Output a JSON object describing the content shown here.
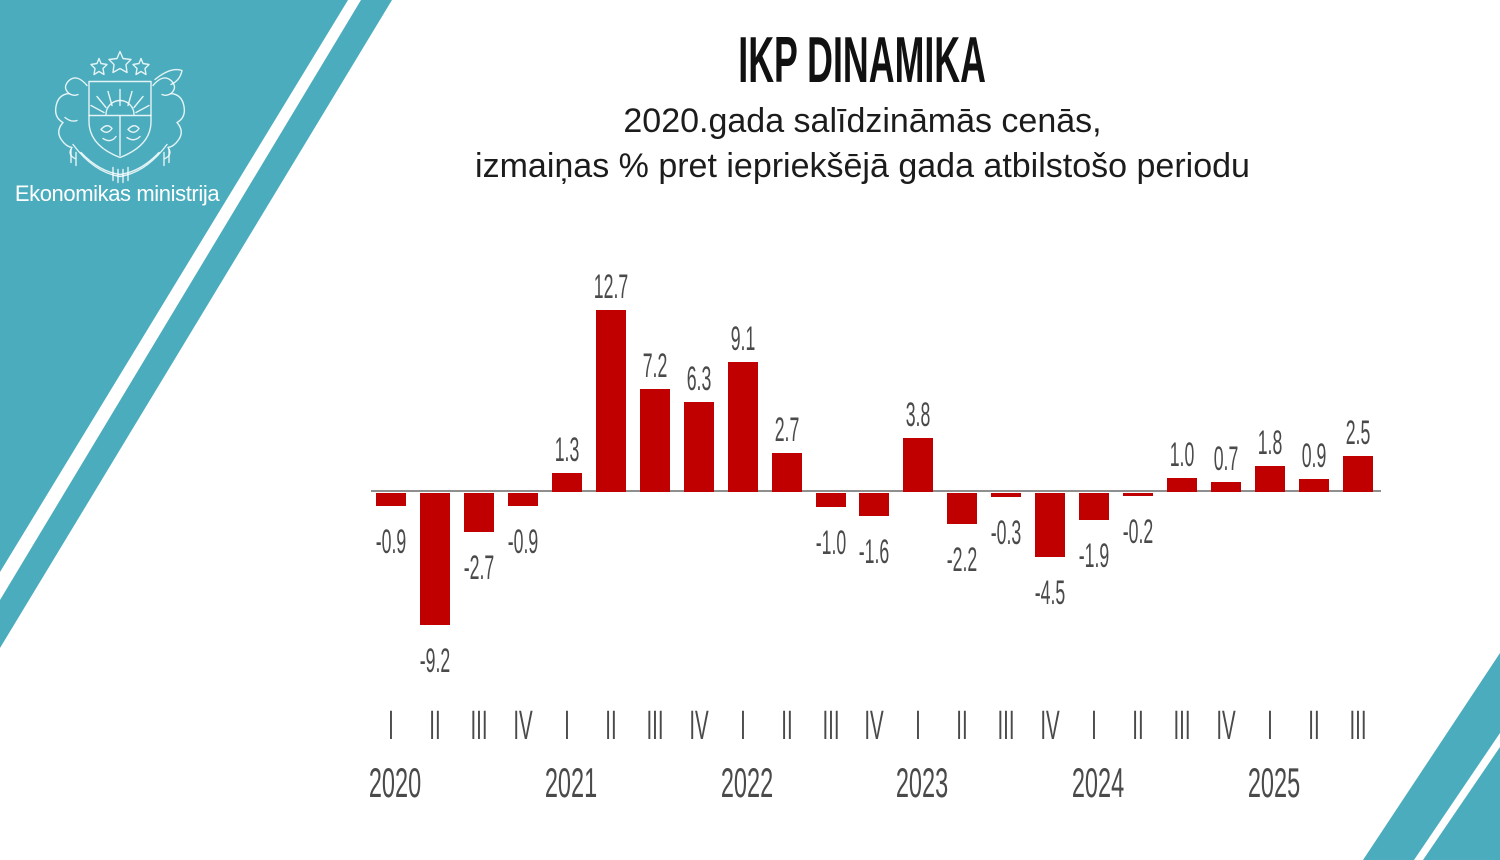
{
  "branding": {
    "ministry_name": "Ekonomikas ministrija",
    "teal_color": "#4AACBD",
    "emblem": "latvia-coat-of-arms"
  },
  "header": {
    "title": "IKP DINAMIKA",
    "subtitle_line1": "2020.gada salīdzināmās cenās,",
    "subtitle_line2": "izmaiņas % pret iepriekšējā gada atbilstošo periodu"
  },
  "chart_data": {
    "type": "bar",
    "title": "IKP DINAMIKA",
    "subtitle": "2020.gada salīdzināmās cenās, izmaiņas % pret iepriekšējā gada atbilstošo periodu",
    "unit": "%",
    "bar_color": "#C00000",
    "label_color": "#4A4A4A",
    "axis_color": "#8F8F8F",
    "grid": false,
    "legend": false,
    "ylim": [
      -10,
      14
    ],
    "groups": [
      {
        "year": "2020",
        "quarters": [
          "I",
          "II",
          "III",
          "IV"
        ],
        "values": [
          -0.9,
          -9.2,
          -2.7,
          -0.9
        ]
      },
      {
        "year": "2021",
        "quarters": [
          "I",
          "II",
          "III",
          "IV"
        ],
        "values": [
          1.3,
          12.7,
          7.2,
          6.3
        ]
      },
      {
        "year": "2022",
        "quarters": [
          "I",
          "II",
          "III",
          "IV"
        ],
        "values": [
          9.1,
          2.7,
          -1.0,
          -1.6
        ]
      },
      {
        "year": "2023",
        "quarters": [
          "I",
          "II",
          "III",
          "IV"
        ],
        "values": [
          3.8,
          -2.2,
          -0.3,
          -4.5
        ]
      },
      {
        "year": "2024",
        "quarters": [
          "I",
          "II",
          "III",
          "IV"
        ],
        "values": [
          -1.9,
          -0.2,
          1.0,
          0.7
        ]
      },
      {
        "year": "2025",
        "quarters": [
          "I",
          "II",
          "III"
        ],
        "values": [
          1.8,
          0.9,
          2.5
        ]
      }
    ]
  }
}
